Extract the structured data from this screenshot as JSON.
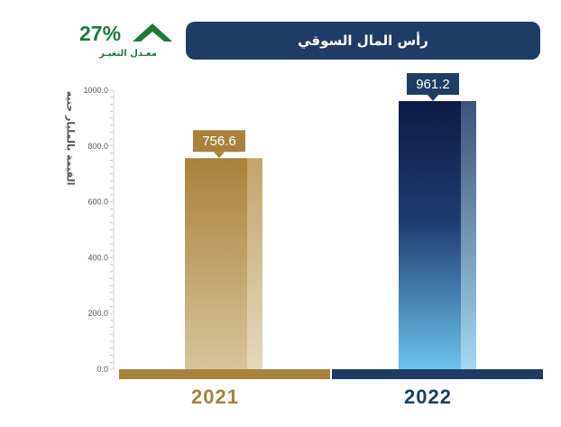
{
  "title": "رأس المال السوقي",
  "change": {
    "value": "27%",
    "label": "معـدل التغيـر"
  },
  "colors": {
    "brand_navy": "#1f3c64",
    "gold": "#a8823a",
    "navy_dark": "#0d1b45",
    "navy_light": "#6cc3ee",
    "positive": "#1e7a3a"
  },
  "chart_data": {
    "type": "bar",
    "title": "رأس المال السوقي",
    "ylabel": "القيمة بالمليار جنيه",
    "categories": [
      "2021",
      "2022"
    ],
    "values": [
      756.6,
      961.2
    ],
    "value_labels": [
      "756.6",
      "961.2"
    ],
    "ylim": [
      0,
      1000
    ],
    "yticks": [
      "0.0",
      "200.0",
      "400.0",
      "600.0",
      "800.0",
      "1000.0"
    ],
    "grid": false
  }
}
